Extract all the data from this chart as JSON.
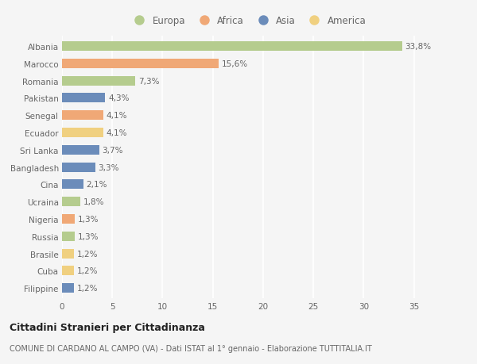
{
  "countries": [
    "Albania",
    "Marocco",
    "Romania",
    "Pakistan",
    "Senegal",
    "Ecuador",
    "Sri Lanka",
    "Bangladesh",
    "Cina",
    "Ucraina",
    "Nigeria",
    "Russia",
    "Brasile",
    "Cuba",
    "Filippine"
  ],
  "values": [
    33.8,
    15.6,
    7.3,
    4.3,
    4.1,
    4.1,
    3.7,
    3.3,
    2.1,
    1.8,
    1.3,
    1.3,
    1.2,
    1.2,
    1.2
  ],
  "labels": [
    "33,8%",
    "15,6%",
    "7,3%",
    "4,3%",
    "4,1%",
    "4,1%",
    "3,7%",
    "3,3%",
    "2,1%",
    "1,8%",
    "1,3%",
    "1,3%",
    "1,2%",
    "1,2%",
    "1,2%"
  ],
  "continents": [
    "Europa",
    "Africa",
    "Europa",
    "Asia",
    "Africa",
    "America",
    "Asia",
    "Asia",
    "Asia",
    "Europa",
    "Africa",
    "Europa",
    "America",
    "America",
    "Asia"
  ],
  "continent_colors": {
    "Europa": "#b5cc8e",
    "Africa": "#f0a876",
    "Asia": "#6b8cba",
    "America": "#f0d080"
  },
  "legend_order": [
    "Europa",
    "Africa",
    "Asia",
    "America"
  ],
  "title": "Cittadini Stranieri per Cittadinanza",
  "subtitle": "COMUNE DI CARDANO AL CAMPO (VA) - Dati ISTAT al 1° gennaio - Elaborazione TUTTITALIA.IT",
  "xlim": [
    0,
    37
  ],
  "xticks": [
    0,
    5,
    10,
    15,
    20,
    25,
    30,
    35
  ],
  "bg_color": "#f5f5f5",
  "bar_height": 0.55,
  "title_fontsize": 9,
  "subtitle_fontsize": 7,
  "label_fontsize": 7.5,
  "tick_fontsize": 7.5,
  "legend_fontsize": 8.5
}
